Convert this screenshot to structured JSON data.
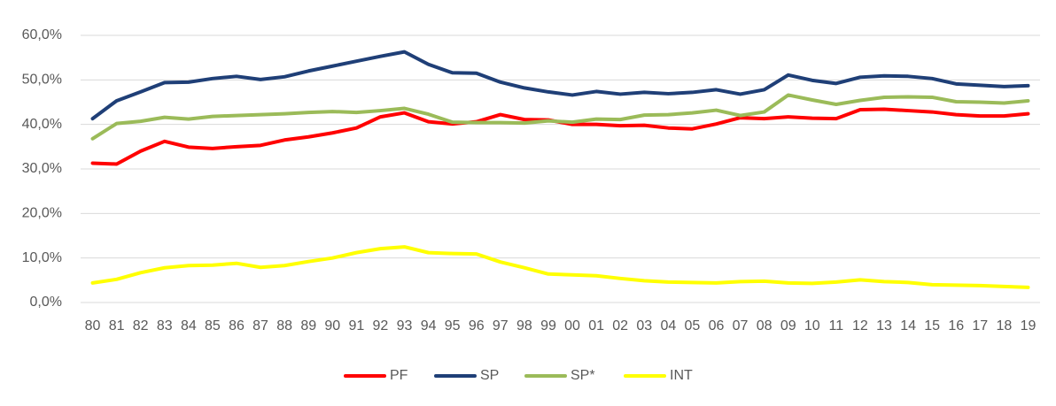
{
  "chart_data": {
    "type": "line",
    "categories": [
      "80",
      "81",
      "82",
      "83",
      "84",
      "85",
      "86",
      "87",
      "88",
      "89",
      "90",
      "91",
      "92",
      "93",
      "94",
      "95",
      "96",
      "97",
      "98",
      "99",
      "00",
      "01",
      "02",
      "03",
      "04",
      "05",
      "06",
      "07",
      "08",
      "09",
      "10",
      "11",
      "12",
      "13",
      "14",
      "15",
      "16",
      "17",
      "18",
      "19"
    ],
    "series": [
      {
        "name": "PF",
        "color": "#ff0000",
        "values": [
          31.3,
          31.1,
          34.0,
          36.2,
          34.9,
          34.6,
          35.0,
          35.3,
          36.5,
          37.2,
          38.1,
          39.2,
          41.7,
          42.6,
          40.6,
          40.1,
          40.6,
          42.2,
          41.1,
          41.0,
          40.0,
          40.0,
          39.7,
          39.8,
          39.2,
          39.0,
          40.1,
          41.5,
          41.3,
          41.7,
          41.4,
          41.3,
          43.3,
          43.4,
          43.1,
          42.8,
          42.2,
          41.9,
          41.9,
          42.4
        ]
      },
      {
        "name": "SP",
        "color": "#1f3f77",
        "values": [
          41.3,
          45.3,
          47.3,
          49.4,
          49.5,
          50.3,
          50.8,
          50.1,
          50.7,
          52.0,
          53.1,
          54.2,
          55.3,
          56.3,
          53.5,
          51.6,
          51.5,
          49.5,
          48.2,
          47.3,
          46.6,
          47.4,
          46.8,
          47.2,
          46.9,
          47.2,
          47.8,
          46.8,
          47.8,
          51.1,
          49.9,
          49.2,
          50.6,
          50.9,
          50.8,
          50.3,
          49.1,
          48.8,
          48.5,
          48.7
        ]
      },
      {
        "name": "SP*",
        "color": "#9bbb59",
        "values": [
          36.8,
          40.2,
          40.7,
          41.6,
          41.2,
          41.8,
          42.0,
          42.2,
          42.4,
          42.7,
          42.9,
          42.7,
          43.1,
          43.6,
          42.3,
          40.5,
          40.4,
          40.4,
          40.3,
          40.8,
          40.5,
          41.2,
          41.1,
          42.1,
          42.2,
          42.6,
          43.2,
          42.0,
          42.8,
          46.6,
          45.5,
          44.5,
          45.4,
          46.1,
          46.2,
          46.1,
          45.1,
          45.0,
          44.8,
          45.3
        ]
      },
      {
        "name": "INT",
        "color": "#ffff00",
        "values": [
          4.4,
          5.2,
          6.7,
          7.8,
          8.3,
          8.4,
          8.8,
          7.9,
          8.3,
          9.2,
          10.0,
          11.2,
          12.1,
          12.5,
          11.2,
          11.0,
          10.9,
          9.1,
          7.8,
          6.4,
          6.2,
          6.0,
          5.4,
          4.9,
          4.6,
          4.5,
          4.4,
          4.7,
          4.8,
          4.4,
          4.3,
          4.6,
          5.1,
          4.7,
          4.5,
          4.0,
          3.9,
          3.8,
          3.6,
          3.4
        ]
      }
    ],
    "ylim": [
      0,
      60
    ],
    "yticks": [
      {
        "value": 0,
        "label": "0,0%"
      },
      {
        "value": 10,
        "label": "10,0%"
      },
      {
        "value": 20,
        "label": "20,0%"
      },
      {
        "value": 30,
        "label": "30,0%"
      },
      {
        "value": 40,
        "label": "40,0%"
      },
      {
        "value": 50,
        "label": "50,0%"
      },
      {
        "value": 60,
        "label": "60,0%"
      }
    ],
    "grid": true,
    "legend": "bottom"
  }
}
